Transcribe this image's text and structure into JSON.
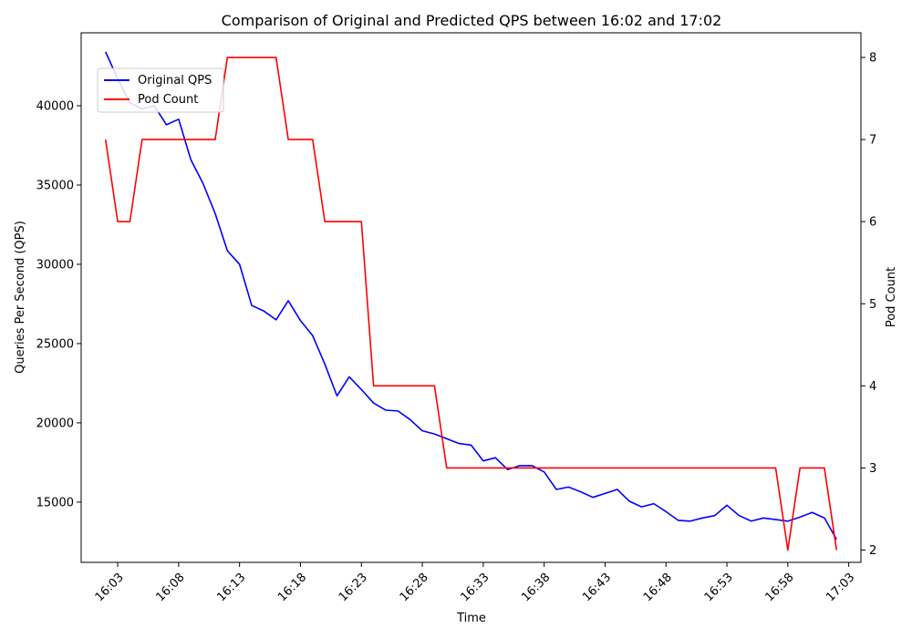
{
  "chart_data": {
    "type": "line",
    "title": "Comparison of Original and Predicted QPS between 16:02 and 17:02",
    "xlabel": "Time",
    "ylabel_left": "Queries Per Second (QPS)",
    "ylabel_right": "Pod Count",
    "x_start": "16:02",
    "x_end": "17:02",
    "x_ticks": [
      "16:03",
      "16:08",
      "16:13",
      "16:18",
      "16:23",
      "16:28",
      "16:33",
      "16:38",
      "16:43",
      "16:48",
      "16:53",
      "16:58",
      "17:03"
    ],
    "xlim": [
      "16:00",
      "17:04"
    ],
    "y_left_ticks": [
      15000,
      20000,
      25000,
      30000,
      35000,
      40000
    ],
    "y_left_lim": [
      11200,
      44600
    ],
    "y_right_ticks": [
      2,
      3,
      4,
      5,
      6,
      7,
      8
    ],
    "y_right_lim": [
      1.85,
      8.3
    ],
    "legend_position": "top-left",
    "series": [
      {
        "name": "Original QPS",
        "axis": "left",
        "color": "#0000ff",
        "values": [
          43400,
          41700,
          40200,
          39800,
          40000,
          38800,
          39150,
          36600,
          35100,
          33200,
          30850,
          30000,
          27400,
          27050,
          26500,
          27700,
          26450,
          25500,
          23700,
          21700,
          22900,
          22100,
          21250,
          20800,
          20750,
          20200,
          19500,
          19300,
          19000,
          18700,
          18600,
          17600,
          17800,
          17050,
          17300,
          17300,
          16900,
          15800,
          15950,
          15650,
          15300,
          15550,
          15800,
          15050,
          14700,
          14900,
          14400,
          13850,
          13800,
          14000,
          14150,
          14800,
          14150,
          13800,
          14000,
          13900,
          13800,
          14050,
          14350,
          14000,
          12650
        ]
      },
      {
        "name": "Pod Count",
        "axis": "right",
        "color": "#ff0000",
        "values": [
          7,
          6,
          6,
          7,
          7,
          7,
          7,
          7,
          7,
          7,
          8,
          8,
          8,
          8,
          8,
          7,
          7,
          7,
          6,
          6,
          6,
          6,
          4,
          4,
          4,
          4,
          4,
          4,
          3,
          3,
          3,
          3,
          3,
          3,
          3,
          3,
          3,
          3,
          3,
          3,
          3,
          3,
          3,
          3,
          3,
          3,
          3,
          3,
          3,
          3,
          3,
          3,
          3,
          3,
          3,
          3,
          2,
          3,
          3,
          3,
          2
        ]
      }
    ]
  }
}
